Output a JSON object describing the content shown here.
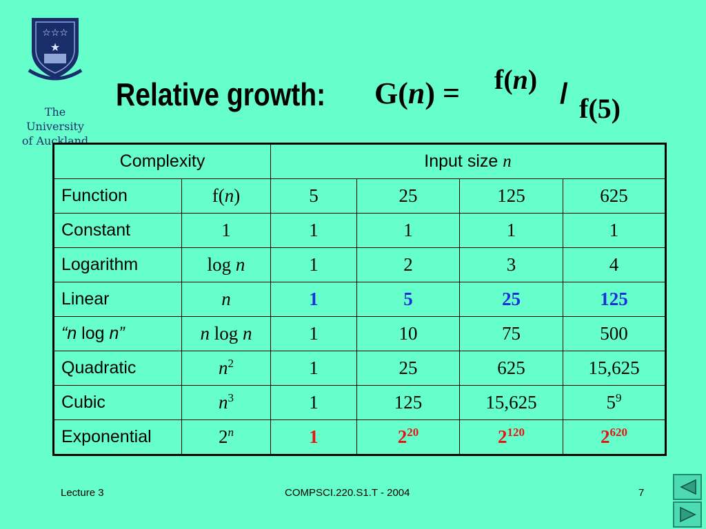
{
  "logo": {
    "line1": "The",
    "line2": "University",
    "line3": "of Auckland"
  },
  "title": {
    "prefix": "Relative growth:",
    "lhs_symbol": "G",
    "lhs_var": "n",
    "equals": "=",
    "numerator_f": "f",
    "numerator_var": "n",
    "slash": "/",
    "denominator": "f(5)"
  },
  "table": {
    "header_left": "Complexity",
    "header_right": "Input size",
    "header_right_var": "n",
    "subheader": {
      "label": "Function",
      "func_f": "f",
      "func_var": "n",
      "sizes": [
        "5",
        "25",
        "125",
        "625"
      ]
    },
    "rows": [
      {
        "name": "Constant",
        "func": "1",
        "values": [
          "1",
          "1",
          "1",
          "1"
        ]
      },
      {
        "name": "Logarithm",
        "func_text": "log",
        "func_var": "n",
        "values": [
          "1",
          "2",
          "3",
          "4"
        ]
      },
      {
        "name": "Linear",
        "func_var": "n",
        "values": [
          "1",
          "5",
          "25",
          "125"
        ],
        "highlight": "#1a2fd9"
      },
      {
        "name_q1": "“",
        "name_var1": "n",
        "name_mid": " log ",
        "name_var2": "n",
        "name_q2": "”",
        "func_var1": "n",
        "func_mid": " log ",
        "func_var2": "n",
        "values": [
          "1",
          "10",
          "75",
          "500"
        ]
      },
      {
        "name": "Quadratic",
        "func_var": "n",
        "func_exp": "2",
        "values": [
          "1",
          "25",
          "625",
          "15,625"
        ]
      },
      {
        "name": "Cubic",
        "func_var": "n",
        "func_exp": "3",
        "values": [
          "1",
          "125",
          "15,625"
        ],
        "last_base": "5",
        "last_exp": "9"
      },
      {
        "name": "Exponential",
        "func_base": "2",
        "func_exp_var": "n",
        "first": "1",
        "powers": [
          {
            "base": "2",
            "exp": "20"
          },
          {
            "base": "2",
            "exp": "120"
          },
          {
            "base": "2",
            "exp": "620"
          }
        ],
        "highlight": "#e61414"
      }
    ]
  },
  "footer": {
    "left": "Lecture 3",
    "center": "COMPSCI.220.S1.T - 2004",
    "page": "7"
  },
  "nav": {
    "prev_icon": "triangle-left-icon",
    "next_icon": "triangle-right-icon"
  },
  "colors": {
    "background": "#66FFCC",
    "linear_highlight": "#1a2fd9",
    "exponential_highlight": "#e61414"
  }
}
